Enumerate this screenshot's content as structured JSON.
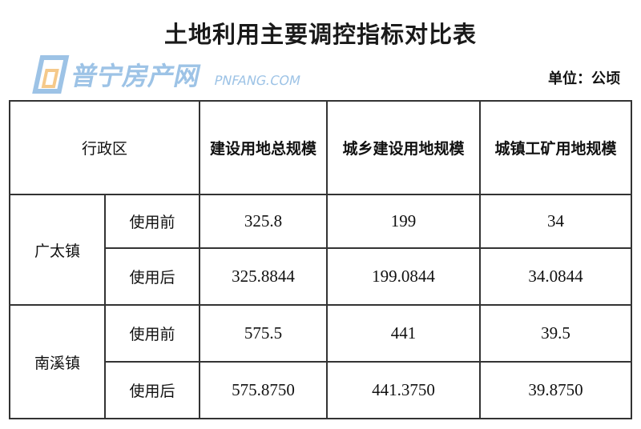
{
  "title": "土地利用主要调控指标对比表",
  "unit": "单位：公顷",
  "table": {
    "headers": [
      "行政区",
      "建设用地总规模",
      "城乡建设用地规模",
      "城镇工矿用地规模"
    ],
    "groups": [
      {
        "name": "广太镇",
        "rows": [
          {
            "label": "使用前",
            "values": [
              "325.8",
              "199",
              "34"
            ]
          },
          {
            "label": "使用后",
            "values": [
              "325.8844",
              "199.0844",
              "34.0844"
            ]
          }
        ]
      },
      {
        "name": "南溪镇",
        "rows": [
          {
            "label": "使用前",
            "values": [
              "575.5",
              "441",
              "39.5"
            ]
          },
          {
            "label": "使用后",
            "values": [
              "575.8750",
              "441.3750",
              "39.8750"
            ]
          }
        ]
      }
    ]
  },
  "watermark": {
    "text": "普宁房产网",
    "subtext": "PNFANG.COM",
    "colors": {
      "blue": "#9dc3e6",
      "orange": "#f5c98a"
    }
  }
}
